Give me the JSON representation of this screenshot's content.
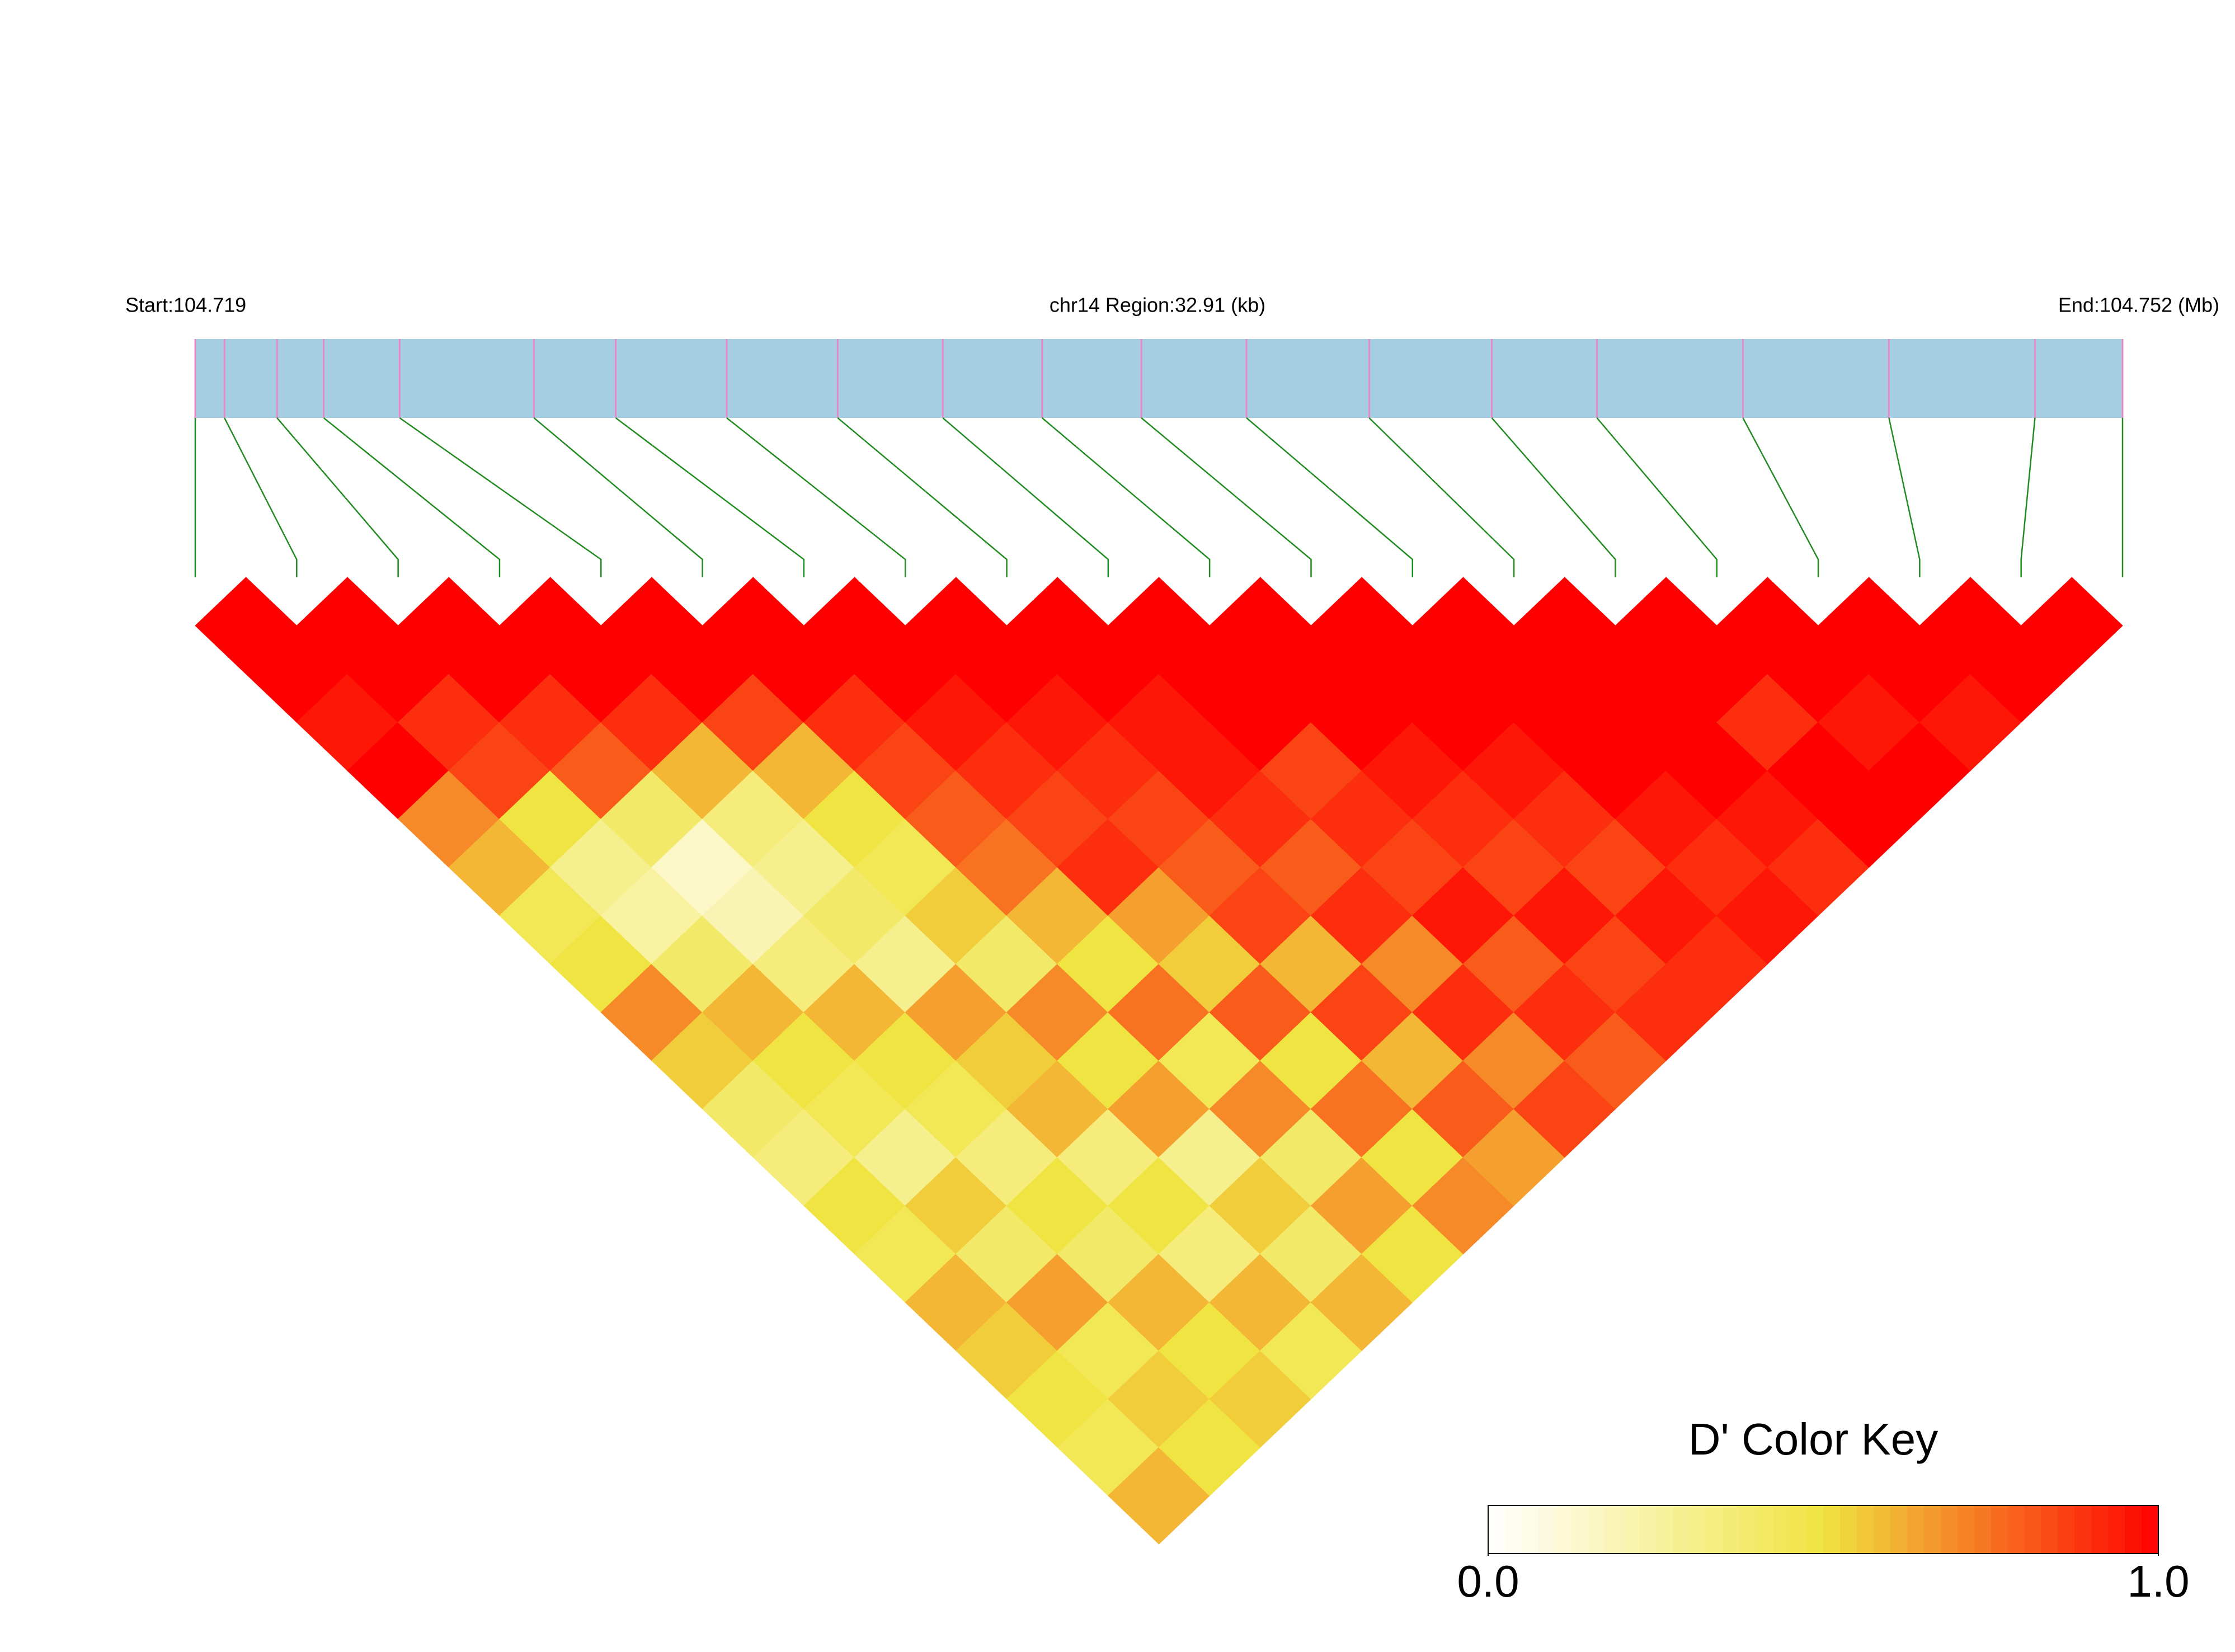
{
  "chart_data": {
    "type": "ld-heatmap",
    "start_label": "Start:104.719",
    "region_label": "chr14 Region:32.91 (kb)",
    "end_label": "End:104.752 (Mb)",
    "xlim": [
      104.719,
      104.752
    ],
    "snp_positions": [
      104.719,
      104.7195,
      104.7204,
      104.7212,
      104.7225,
      104.7248,
      104.7262,
      104.7281,
      104.73,
      104.7318,
      104.7335,
      104.7352,
      104.737,
      104.7391,
      104.7412,
      104.743,
      104.7455,
      104.748,
      104.7505,
      104.752
    ],
    "dprime": [
      [
        1
      ],
      [
        1,
        1
      ],
      [
        0.95,
        1,
        1
      ],
      [
        1,
        0.9,
        1,
        1
      ],
      [
        0.7,
        0.85,
        0.9,
        1,
        1
      ],
      [
        0.6,
        0.5,
        0.8,
        0.9,
        1,
        1
      ],
      [
        0.45,
        0.3,
        0.4,
        0.6,
        0.85,
        1,
        1
      ],
      [
        0.5,
        0.25,
        0.15,
        0.35,
        0.6,
        0.9,
        1,
        1
      ],
      [
        0.7,
        0.4,
        0.2,
        0.3,
        0.5,
        0.85,
        0.95,
        1,
        1
      ],
      [
        0.55,
        0.6,
        0.35,
        0.4,
        0.45,
        0.8,
        0.9,
        0.95,
        1,
        1
      ],
      [
        0.4,
        0.5,
        0.6,
        0.3,
        0.55,
        0.75,
        0.85,
        0.9,
        0.95,
        1,
        1
      ],
      [
        0.35,
        0.45,
        0.5,
        0.65,
        0.4,
        0.6,
        0.9,
        0.85,
        0.95,
        1,
        1,
        1
      ],
      [
        0.5,
        0.3,
        0.45,
        0.55,
        0.7,
        0.5,
        0.65,
        0.8,
        0.9,
        0.85,
        1,
        1,
        1
      ],
      [
        0.45,
        0.55,
        0.35,
        0.6,
        0.5,
        0.75,
        0.55,
        0.85,
        0.8,
        0.9,
        0.95,
        1,
        1,
        1
      ],
      [
        0.6,
        0.4,
        0.5,
        0.35,
        0.65,
        0.45,
        0.8,
        0.6,
        0.9,
        0.85,
        0.9,
        0.95,
        1,
        1,
        1
      ],
      [
        0.55,
        0.65,
        0.4,
        0.5,
        0.3,
        0.7,
        0.5,
        0.85,
        0.7,
        0.95,
        0.85,
        0.9,
        1,
        1,
        1,
        1
      ],
      [
        0.5,
        0.45,
        0.6,
        0.35,
        0.55,
        0.4,
        0.75,
        0.6,
        0.9,
        0.8,
        0.95,
        0.85,
        0.95,
        1,
        0.9,
        1,
        1
      ],
      [
        0.45,
        0.55,
        0.5,
        0.6,
        0.4,
        0.65,
        0.5,
        0.8,
        0.7,
        0.9,
        0.85,
        0.95,
        0.9,
        0.95,
        1,
        0.95,
        1,
        1
      ],
      [
        0.6,
        0.5,
        0.55,
        0.45,
        0.6,
        0.5,
        0.7,
        0.65,
        0.85,
        0.8,
        0.9,
        0.9,
        0.95,
        0.9,
        1,
        1,
        0.95,
        1,
        1
      ]
    ],
    "bar_color": "#a6cee3",
    "snp_color": "#e78ac3",
    "link_color": "#228b22",
    "color_key": {
      "title": "D' Color Key",
      "lim": [
        0,
        1
      ],
      "ticks": [
        {
          "value": 0,
          "label": "0.0"
        },
        {
          "value": 1,
          "label": "1.0"
        }
      ],
      "colors": [
        "#ffffff",
        "#f0e442",
        "#ff0000"
      ]
    }
  }
}
